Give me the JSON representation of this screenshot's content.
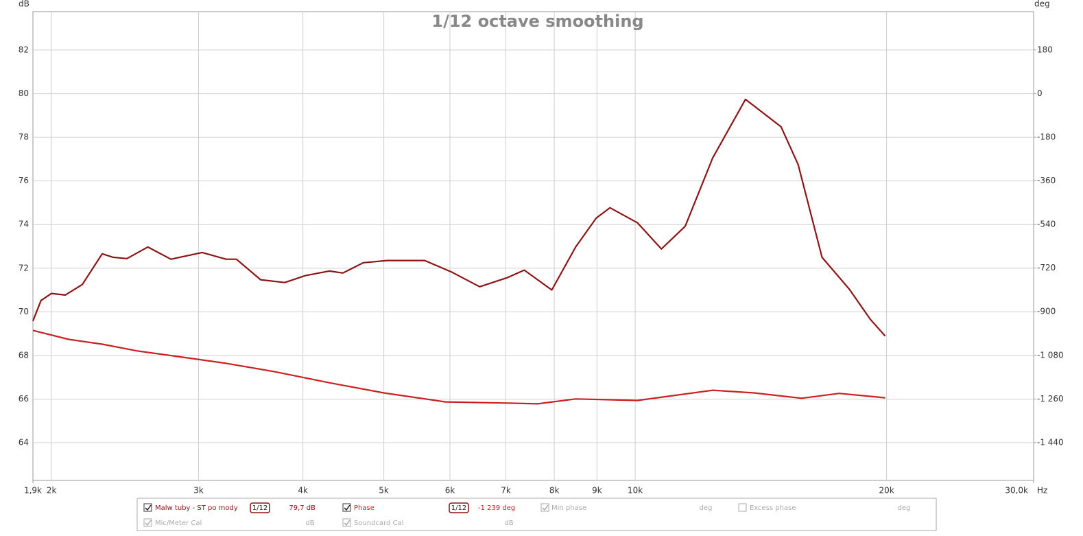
{
  "chart_data": {
    "type": "line",
    "title": "1/12 octave smoothing",
    "x_unit": "Hz",
    "y_unit": "dB",
    "y2_unit": "deg",
    "log_x": true,
    "grid": true,
    "xlim": [
      1900,
      30000
    ],
    "xticks": [
      {
        "value": 1900,
        "label": "1,9k"
      },
      {
        "value": 2000,
        "label": "2k"
      },
      {
        "value": 3000,
        "label": "3k"
      },
      {
        "value": 4000,
        "label": "4k"
      },
      {
        "value": 5000,
        "label": "5k"
      },
      {
        "value": 6000,
        "label": "6k"
      },
      {
        "value": 7000,
        "label": "7k"
      },
      {
        "value": 8000,
        "label": "8k"
      },
      {
        "value": 9000,
        "label": "9k"
      },
      {
        "value": 10000,
        "label": "10k"
      },
      {
        "value": 20000,
        "label": "20k"
      },
      {
        "value": 30000,
        "label": "30,0k"
      }
    ],
    "ylim": [
      62.27,
      83.76
    ],
    "yticks": [
      64,
      66,
      68,
      70,
      72,
      74,
      76,
      78,
      80,
      82
    ],
    "y2lim": [
      -1596,
      338
    ],
    "y2ticks": [
      {
        "value": -1440,
        "label": "-1 440"
      },
      {
        "value": -1260,
        "label": "-1 260"
      },
      {
        "value": -1080,
        "label": "-1 080"
      },
      -900,
      -720,
      -540,
      -360,
      -180,
      0,
      180
    ],
    "series": [
      {
        "name": "Malw tuby - ST po mody",
        "color": "#8b1414",
        "smoothing": "1/12",
        "readout": "79,7 dB",
        "x": [
          1900,
          1943,
          2000,
          2077,
          2177,
          2300,
          2370,
          2462,
          2608,
          2780,
          3030,
          3236,
          3330,
          3560,
          3804,
          4027,
          4302,
          4466,
          4725,
          5046,
          5598,
          6038,
          6513,
          7023,
          7365,
          7946,
          8486,
          8981,
          9328,
          10064,
          10750,
          11478,
          12384,
          13555,
          14952,
          15674,
          16740,
          18056,
          19107,
          19923
        ],
        "values": [
          69.58,
          70.52,
          70.84,
          70.77,
          71.25,
          72.66,
          72.5,
          72.44,
          72.97,
          72.41,
          72.72,
          72.41,
          72.41,
          71.47,
          71.34,
          71.66,
          71.87,
          71.78,
          72.25,
          72.35,
          72.35,
          71.81,
          71.15,
          71.56,
          71.91,
          71.0,
          72.97,
          74.3,
          74.77,
          74.08,
          72.88,
          73.92,
          77.06,
          79.74,
          78.48,
          76.75,
          72.5,
          71.03,
          69.67,
          68.89
        ]
      },
      {
        "name": "Phase",
        "color": "#cc2020",
        "axis": "y2",
        "smoothing": "1/12",
        "readout": "-1 239 deg",
        "x": [
          1900,
          2097,
          2300,
          2535,
          2834,
          3236,
          3695,
          4302,
          5000,
          5926,
          7023,
          7645,
          8486,
          10064,
          12384,
          13880,
          15822,
          17549,
          19923
        ],
        "values": [
          -977,
          -1014,
          -1034,
          -1062,
          -1085,
          -1113,
          -1147,
          -1193,
          -1235,
          -1272,
          -1277,
          -1280,
          -1260,
          -1266,
          -1224,
          -1235,
          -1257,
          -1237,
          -1255
        ]
      }
    ]
  },
  "other_traces": [
    {
      "label": "Min phase",
      "unit": "deg"
    },
    {
      "label": "Excess phase",
      "unit": "deg"
    },
    {
      "label": "Mic/Meter Cal",
      "unit": "dB"
    },
    {
      "label": "Soundcard Cal",
      "unit": "dB"
    }
  ]
}
